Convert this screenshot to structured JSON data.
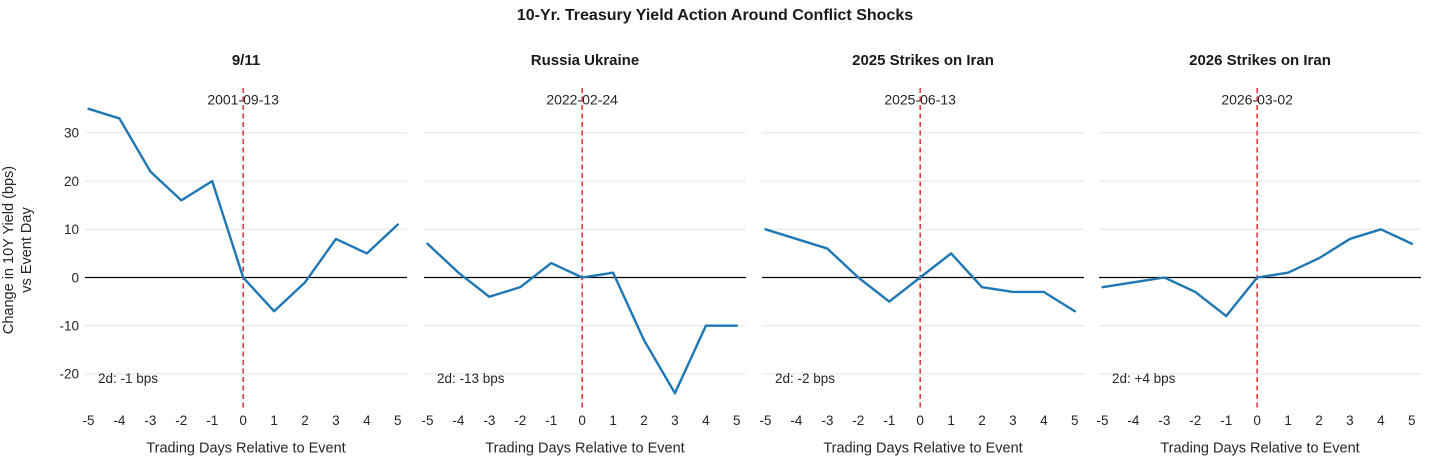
{
  "title": "10-Yr. Treasury Yield Action Around Conflict Shocks",
  "y_axis": {
    "label_line1": "Change in 10Y Yield (bps)",
    "label_line2": "vs Event Day",
    "ticks": [
      30,
      20,
      10,
      0,
      -10,
      -20
    ]
  },
  "x_axis": {
    "label": "Trading Days Relative to Event",
    "ticks": [
      -5,
      -4,
      -3,
      -2,
      -1,
      0,
      1,
      2,
      3,
      4,
      5
    ]
  },
  "colors": {
    "line": "#1f77b4",
    "event_line": "#e02420",
    "zero_line": "#000000",
    "grid": "#e4e4e4",
    "title_text": "#1a1a1a",
    "tick_text": "#262626"
  },
  "chart_data": [
    {
      "type": "line",
      "title": "9/11",
      "event_date": "2001-09-13",
      "annotation": "2d: -1 bps",
      "x": [
        -5,
        -4,
        -3,
        -2,
        -1,
        0,
        1,
        2,
        3,
        4,
        5
      ],
      "values": [
        35,
        33,
        22,
        16,
        20,
        0,
        -7,
        -1,
        8,
        5,
        11
      ],
      "xlabel": "Trading Days Relative to Event",
      "ylabel": "Change in 10Y Yield (bps) vs Event Day",
      "ylim": [
        -28,
        39
      ],
      "grid": true,
      "legend": false
    },
    {
      "type": "line",
      "title": "Russia Ukraine",
      "event_date": "2022-02-24",
      "annotation": "2d: -13 bps",
      "x": [
        -5,
        -4,
        -3,
        -2,
        -1,
        0,
        1,
        2,
        3,
        4,
        5
      ],
      "values": [
        7,
        1,
        -4,
        -2,
        3,
        0,
        1,
        -13,
        -24,
        -10,
        -10
      ],
      "xlabel": "Trading Days Relative to Event",
      "ylim": [
        -28,
        39
      ],
      "grid": true,
      "legend": false
    },
    {
      "type": "line",
      "title": "2025 Strikes on Iran",
      "event_date": "2025-06-13",
      "annotation": "2d: -2 bps",
      "x": [
        -5,
        -4,
        -3,
        -2,
        -1,
        0,
        1,
        2,
        3,
        4,
        5
      ],
      "values": [
        10,
        8,
        6,
        0,
        -5,
        0,
        5,
        -2,
        -3,
        -3,
        -7
      ],
      "xlabel": "Trading Days Relative to Event",
      "ylim": [
        -28,
        39
      ],
      "grid": true,
      "legend": false
    },
    {
      "type": "line",
      "title": "2026 Strikes on Iran",
      "event_date": "2026-03-02",
      "annotation": "2d: +4 bps",
      "x": [
        -5,
        -4,
        -3,
        -2,
        -1,
        0,
        1,
        2,
        3,
        4,
        5
      ],
      "values": [
        -2,
        -1,
        0,
        -3,
        -8,
        0,
        1,
        4,
        8,
        10,
        7
      ],
      "xlabel": "Trading Days Relative to Event",
      "ylim": [
        -28,
        39
      ],
      "grid": true,
      "legend": false
    }
  ]
}
